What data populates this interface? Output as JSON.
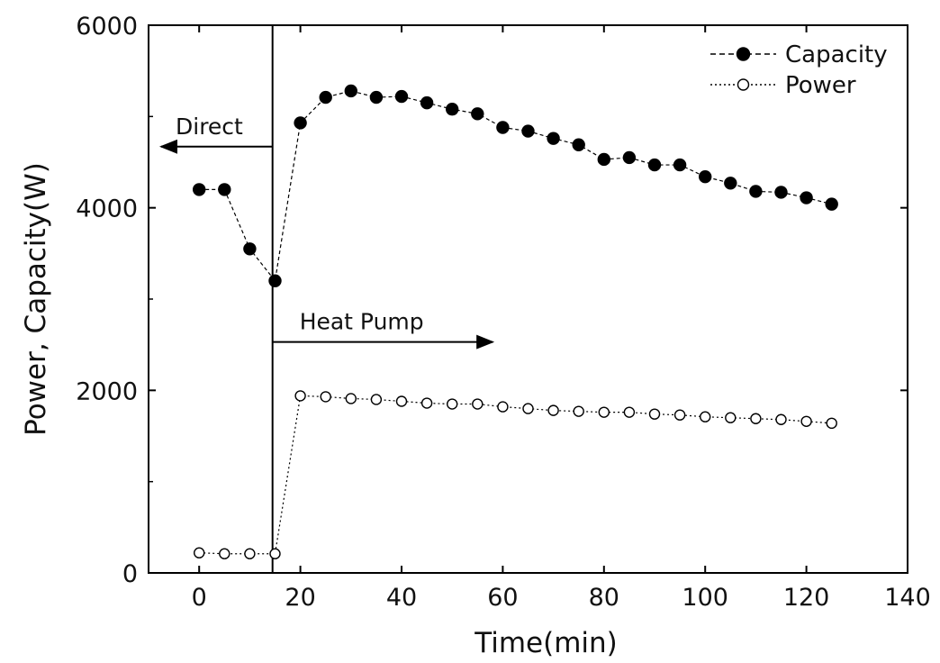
{
  "chart_data": {
    "type": "line",
    "title": "",
    "xlabel": "Time(min)",
    "ylabel": "Power, Capacity(W)",
    "xlim": [
      -10,
      140
    ],
    "ylim": [
      0,
      6000
    ],
    "x_ticks": [
      0,
      20,
      40,
      60,
      80,
      100,
      120,
      140
    ],
    "y_ticks": [
      0,
      2000,
      4000,
      6000
    ],
    "x_tick_labels": [
      "0",
      "20",
      "40",
      "60",
      "80",
      "100",
      "120",
      "140"
    ],
    "y_tick_labels": [
      "0",
      "2000",
      "4000",
      "6000"
    ],
    "grid": false,
    "legend": {
      "position": "top-right",
      "entries": [
        "Capacity",
        "Power"
      ]
    },
    "series": [
      {
        "name": "Capacity",
        "marker": "filled-circle",
        "line_style": "dashed",
        "color": "#000000",
        "x": [
          0,
          5,
          10,
          15,
          20,
          25,
          30,
          35,
          40,
          45,
          50,
          55,
          60,
          65,
          70,
          75,
          80,
          85,
          90,
          95,
          100,
          105,
          110,
          115,
          120,
          125
        ],
        "y": [
          4200,
          4200,
          3550,
          3200,
          4930,
          5210,
          5280,
          5210,
          5220,
          5150,
          5080,
          5030,
          4880,
          4840,
          4760,
          4690,
          4530,
          4550,
          4470,
          4470,
          4340,
          4270,
          4180,
          4170,
          4110,
          4040
        ]
      },
      {
        "name": "Power",
        "marker": "open-circle",
        "line_style": "dotted",
        "color": "#000000",
        "x": [
          0,
          5,
          10,
          15,
          20,
          25,
          30,
          35,
          40,
          45,
          50,
          55,
          60,
          65,
          70,
          75,
          80,
          85,
          90,
          95,
          100,
          105,
          110,
          115,
          120,
          125
        ],
        "y": [
          220,
          210,
          210,
          210,
          1940,
          1930,
          1910,
          1900,
          1880,
          1860,
          1850,
          1850,
          1820,
          1800,
          1780,
          1770,
          1760,
          1760,
          1740,
          1730,
          1710,
          1700,
          1690,
          1680,
          1660,
          1640
        ]
      }
    ],
    "annotations": [
      {
        "text": "Direct",
        "arrow": "left"
      },
      {
        "text": "Heat Pump",
        "arrow": "right"
      }
    ],
    "divider_x": 14.5
  }
}
